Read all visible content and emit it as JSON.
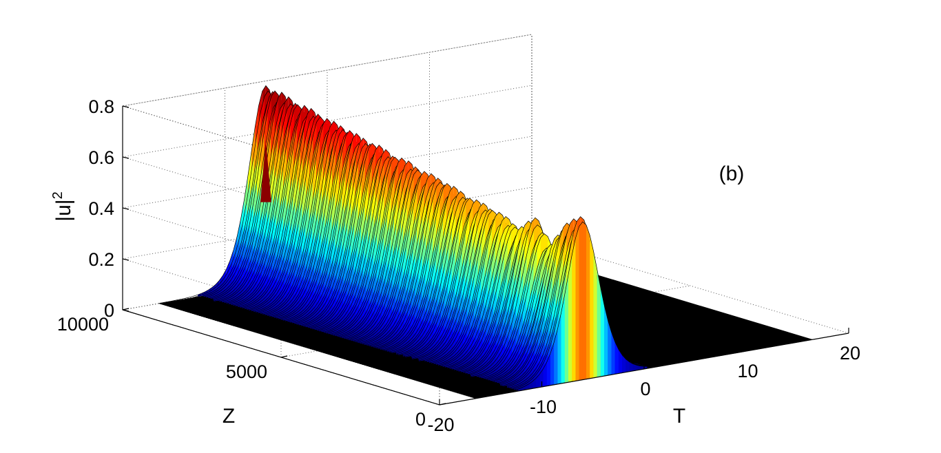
{
  "chart_data": {
    "type": "surface",
    "title": "",
    "annotation": "(b)",
    "xlabel": "T",
    "ylabel": "Z",
    "zlabel": "|u|",
    "zlabel_superscript": "2",
    "xlim": [
      -20,
      20
    ],
    "ylim": [
      0,
      10000
    ],
    "zlim": [
      0,
      0.8
    ],
    "x_ticks": [
      -20,
      -10,
      0,
      10,
      20
    ],
    "x_tick_labels": [
      "-20",
      "-10",
      "0",
      "10",
      "20"
    ],
    "y_ticks": [
      0,
      5000,
      10000
    ],
    "y_tick_labels": [
      "0",
      "5000",
      "10000"
    ],
    "z_ticks": [
      0,
      0.2,
      0.4,
      0.6,
      0.8
    ],
    "z_tick_labels": [
      "0",
      "0.2",
      "0.4",
      "0.6",
      "0.8"
    ],
    "grid": true,
    "colormap": "jet",
    "surface_color_stops": [
      "#00008f",
      "#0000ff",
      "#0080ff",
      "#00ffff",
      "#80ff80",
      "#ffff00",
      "#ff8000",
      "#ff0000",
      "#800000"
    ],
    "series": [
      {
        "pulse_center_T": -6,
        "pulse_width_T": 2.2,
        "z_samples": [
          0,
          500,
          1000,
          1500,
          2000,
          2500,
          3000,
          3500,
          4000,
          4500,
          5000,
          5500,
          6000,
          6500,
          7000,
          7500,
          8000,
          8500,
          9000,
          9500,
          10000
        ],
        "peak_values": [
          0.62,
          0.58,
          0.47,
          0.56,
          0.5,
          0.53,
          0.55,
          0.56,
          0.58,
          0.6,
          0.61,
          0.63,
          0.64,
          0.66,
          0.67,
          0.69,
          0.7,
          0.72,
          0.73,
          0.75,
          0.76
        ]
      }
    ]
  }
}
